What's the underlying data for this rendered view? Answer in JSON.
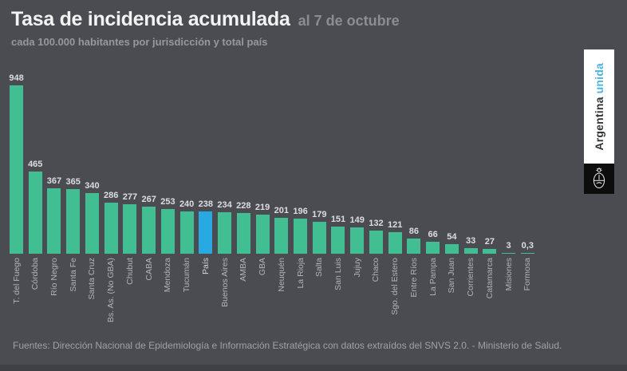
{
  "header": {
    "title": "Tasa de incidencia acumulada",
    "date_note": "al 7 de octubre",
    "subtitle": "cada 100.000 habitantes por jurisdicción y total país"
  },
  "chart_data": {
    "type": "bar",
    "title": "Tasa de incidencia acumulada al 7 de octubre",
    "subtitle": "cada 100.000 habitantes por jurisdicción y total país",
    "xlabel": "",
    "ylabel": "",
    "ylim": [
      0,
      1000
    ],
    "grid": false,
    "legend": "none",
    "categories": [
      "T. del Fuego",
      "Córdoba",
      "Río Negro",
      "Santa Fe",
      "Santa Cruz",
      "Bs. As. (No GBA)",
      "Chubut",
      "CABA",
      "Mendoza",
      "Tucumán",
      "País",
      "Buenos Aires",
      "AMBA",
      "GBA",
      "Neuquén",
      "La Rioja",
      "Salta",
      "San Luis",
      "Jujuy",
      "Chaco",
      "Sgo. del Estero",
      "Entre Ríos",
      "La Pampa",
      "San Juan",
      "Corrientes",
      "Catamarca",
      "Misiones",
      "Formosa"
    ],
    "values": [
      948,
      465,
      367,
      365,
      340,
      286,
      277,
      267,
      253,
      240,
      238,
      234,
      228,
      219,
      201,
      196,
      179,
      151,
      149,
      132,
      121,
      86,
      66,
      54,
      33,
      27,
      3,
      0.3
    ],
    "value_labels": [
      "948",
      "465",
      "367",
      "365",
      "340",
      "286",
      "277",
      "267",
      "253",
      "240",
      "238",
      "234",
      "228",
      "219",
      "201",
      "196",
      "179",
      "151",
      "149",
      "132",
      "121",
      "86",
      "66",
      "54",
      "33",
      "27",
      "3",
      "0,3"
    ],
    "highlight_category": "País",
    "highlight_index": 10,
    "bar_color": "#41be92",
    "highlight_color": "#29a9e1"
  },
  "footer": {
    "source": "Fuentes: Dirección Nacional de Epidemiología e Información Estratégica con datos extraídos del SNVS 2.0. - Ministerio de Salud."
  },
  "banner": {
    "brand_primary": "Argentina",
    "brand_secondary": "unida",
    "secondary_color": "#4fb2df",
    "emblem": "argentina-coat-of-arms"
  },
  "colors": {
    "background": "#4a4c51",
    "bottom_strip": "#3e4044",
    "value_label": "#dcdde0",
    "axis_label": "#b1b3b6"
  }
}
